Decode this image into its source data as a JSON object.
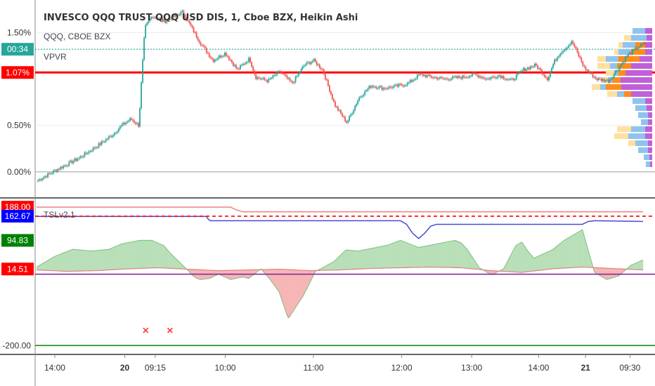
{
  "header": {
    "title": "INVESCO QQQ TRUST QQQ USD DIS, 1, Cboe BZX, Heikin Ashi",
    "symbol": "QQQ, CBOE BZX",
    "indicator": "VPVR"
  },
  "lower_panel": {
    "indicator": "TSLv2.1"
  },
  "colors": {
    "up": "#26a69a",
    "down": "#ef5350",
    "red_line": "#ff0000",
    "blue_line": "#4848d8",
    "pink_line": "#f08080",
    "purple_line": "#8b2b9b",
    "green_line": "#1a8a1a",
    "fill_green": "#b9dfb9",
    "fill_red": "#f6b6b6",
    "vol_blue": "#8fc4ee",
    "vol_orange": "#ff8c1a",
    "vol_purple": "#c060d8",
    "vol_yellow": "#ffe0a0"
  },
  "chart_data": [
    {
      "type": "candlestick",
      "title": "INVESCO QQQ TRUST QQQ USD DIS, 1, Cboe BZX, Heikin Ashi",
      "y_unit": "%",
      "y_ticks": [
        1.5,
        0.5,
        0.0
      ],
      "y_tick_labels": [
        "1.50%",
        "0.50%",
        "0.00%"
      ],
      "ylim": [
        -0.28,
        1.85
      ],
      "x_ticks": [
        "14:00",
        "20",
        "09:15",
        "10:00",
        "11:00",
        "12:00",
        "13:00",
        "14:00",
        "21",
        "09:30"
      ],
      "price_badges": [
        {
          "label": "00:34",
          "value": 1.32,
          "color": "#26a69a"
        },
        {
          "label": "1.07%",
          "value": 1.07,
          "color": "#ff0000"
        }
      ],
      "horizontal_lines": [
        {
          "name": "close-dotted",
          "value": 1.32,
          "style": "dotted",
          "color": "#26a69a"
        },
        {
          "name": "level-red",
          "value": 1.07,
          "style": "solid",
          "color": "#ff0000"
        }
      ],
      "series": [
        {
          "name": "QQQ",
          "x": [
            0,
            0.035,
            0.07,
            0.1,
            0.125,
            0.14,
            0.155,
            0.168,
            0.173,
            0.178,
            0.19,
            0.21,
            0.24,
            0.255,
            0.27,
            0.29,
            0.31,
            0.33,
            0.35,
            0.36,
            0.38,
            0.4,
            0.42,
            0.44,
            0.455,
            0.47,
            0.49,
            0.51,
            0.53,
            0.55,
            0.57,
            0.59,
            0.61,
            0.63,
            0.65,
            0.67,
            0.7,
            0.72,
            0.74,
            0.76,
            0.78,
            0.8,
            0.82,
            0.84,
            0.85,
            0.86,
            0.88,
            0.9,
            0.92,
            0.94,
            0.96,
            0.97,
            0.99,
            1.0
          ],
          "values": [
            -0.1,
            0.03,
            0.15,
            0.28,
            0.4,
            0.5,
            0.57,
            0.5,
            1.05,
            1.55,
            1.68,
            1.62,
            1.72,
            1.55,
            1.38,
            1.2,
            1.28,
            1.1,
            1.22,
            1.02,
            0.98,
            1.08,
            0.95,
            1.15,
            1.2,
            1.1,
            0.72,
            0.53,
            0.8,
            0.93,
            0.9,
            0.92,
            0.95,
            1.05,
            1.02,
            1.0,
            1.02,
            1.05,
            1.0,
            1.04,
            0.98,
            1.1,
            1.15,
            1.0,
            1.18,
            1.28,
            1.4,
            1.12,
            1.0,
            0.98,
            1.15,
            1.25,
            1.35,
            1.38
          ]
        }
      ],
      "volume_profile": "horizontal bars on right edge (blue / orange / purple / yellow)"
    },
    {
      "type": "area",
      "title": "TSLv2.1",
      "y_badges": [
        {
          "label": "188.00",
          "value": 188.0,
          "color": "#ff0000"
        },
        {
          "label": "162.67",
          "value": 162.67,
          "color": "#0000ff"
        },
        {
          "label": "94.83",
          "value": 94.83,
          "color": "#008000"
        },
        {
          "label": "14.51",
          "value": 14.51,
          "color": "#ff0000"
        },
        {
          "label": "-200.00",
          "value": -200.0,
          "color": null
        }
      ],
      "ylim": [
        -225,
        210
      ],
      "horizontal_lines": [
        {
          "name": "dashed-red",
          "value": 162.67,
          "color": "#ff0000",
          "style": "dashed"
        },
        {
          "name": "purple",
          "value": 0,
          "color": "#8b2b9b",
          "style": "solid"
        },
        {
          "name": "green",
          "value": -200,
          "color": "#1a8a1a",
          "style": "solid"
        }
      ],
      "markers": [
        {
          "symbol": "x",
          "x": 0.18,
          "value": -160
        },
        {
          "symbol": "x",
          "x": 0.22,
          "value": -160
        }
      ],
      "series": [
        {
          "name": "oscillator",
          "x": [
            0,
            0.03,
            0.06,
            0.09,
            0.12,
            0.14,
            0.17,
            0.19,
            0.21,
            0.22,
            0.25,
            0.255,
            0.262,
            0.27,
            0.285,
            0.3,
            0.32,
            0.34,
            0.35,
            0.37,
            0.385,
            0.4,
            0.415,
            0.44,
            0.46,
            0.49,
            0.51,
            0.53,
            0.56,
            0.58,
            0.6,
            0.63,
            0.66,
            0.69,
            0.7,
            0.71,
            0.73,
            0.75,
            0.77,
            0.79,
            0.8,
            0.81,
            0.82,
            0.85,
            0.87,
            0.9,
            0.92,
            0.94,
            0.96,
            0.98,
            1.0
          ],
          "values": [
            20,
            50,
            70,
            65,
            70,
            85,
            95,
            95,
            80,
            60,
            10,
            0,
            -10,
            -15,
            -12,
            0,
            -15,
            -8,
            -12,
            15,
            -15,
            -50,
            -125,
            -60,
            8,
            35,
            68,
            65,
            75,
            82,
            95,
            75,
            85,
            95,
            88,
            70,
            18,
            -2,
            15,
            80,
            90,
            65,
            45,
            68,
            95,
            125,
            5,
            -15,
            -5,
            25,
            40
          ]
        },
        {
          "name": "pink-upper",
          "x": [
            0,
            0.3,
            0.32,
            0.33,
            0.34,
            0.35,
            1.0
          ],
          "values": [
            188,
            188,
            188,
            180,
            175,
            175,
            175
          ]
        },
        {
          "name": "blue",
          "x": [
            0,
            0.28,
            0.285,
            0.29,
            0.6,
            0.61,
            0.62,
            0.63,
            0.64,
            0.65,
            0.66,
            0.9,
            0.91,
            0.92,
            1.0
          ],
          "values": [
            162,
            162,
            150,
            150,
            150,
            140,
            115,
            100,
            115,
            135,
            140,
            140,
            148,
            150,
            148
          ]
        },
        {
          "name": "pink-lower",
          "x": [
            0,
            0.05,
            0.1,
            0.12,
            0.15,
            0.2,
            0.25,
            0.3,
            0.35,
            0.4,
            0.45,
            0.5,
            0.55,
            0.6,
            0.65,
            0.7,
            0.75,
            0.8,
            0.85,
            0.9,
            0.95,
            1.0
          ],
          "values": [
            12,
            8,
            10,
            12,
            15,
            18,
            14,
            10,
            12,
            14,
            10,
            12,
            16,
            18,
            20,
            18,
            10,
            5,
            15,
            20,
            16,
            12
          ]
        }
      ]
    }
  ]
}
